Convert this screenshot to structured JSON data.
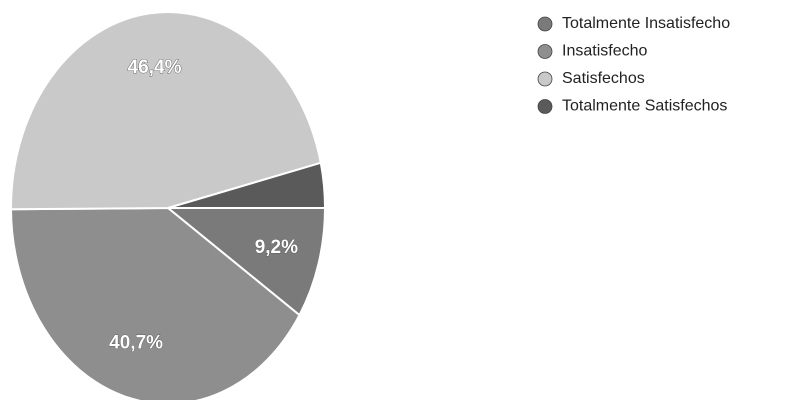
{
  "chart_data": {
    "type": "pie",
    "categories": [
      "Totalmente Insatisfecho",
      "Insatisfecho",
      "Satisfechos",
      "Totalmente Satisfechos"
    ],
    "values": [
      9.2,
      40.7,
      46.4,
      3.7
    ],
    "value_labels": [
      "9,2%",
      "40,7%",
      "46,4%",
      null
    ],
    "colors": [
      "#7a7a7a",
      "#8e8e8e",
      "#c9c9c9",
      "#5a5a5a"
    ],
    "legend": "right"
  }
}
